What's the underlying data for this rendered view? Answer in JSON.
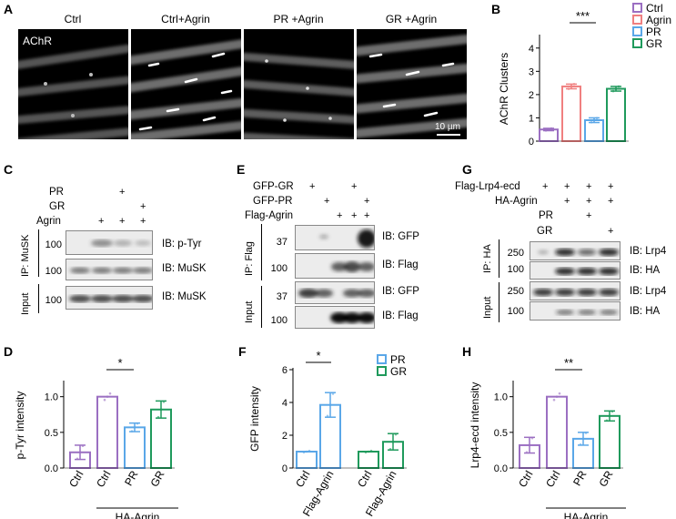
{
  "panels": {
    "A": {
      "label": "A",
      "titles": [
        "Ctrl",
        "Ctrl+Agrin",
        "PR +Agrin",
        "GR +Agrin"
      ],
      "stain": "AChR",
      "scale_bar": "10 µm"
    },
    "B": {
      "label": "B"
    },
    "C": {
      "label": "C",
      "rows": [
        "PR",
        "GR",
        "Agrin"
      ],
      "marks": {
        "pr": [
          "",
          "",
          "+",
          ""
        ],
        "gr": [
          "",
          "",
          "",
          "+"
        ],
        "agrin": [
          "",
          "+",
          "+",
          "+"
        ]
      },
      "ip_label": "IP: MuSK",
      "input_label": "Input",
      "mw": [
        "100",
        "100",
        "100"
      ],
      "ib": [
        "IB: p-Tyr",
        "IB: MuSK",
        "IB: MuSK"
      ]
    },
    "D": {
      "label": "D",
      "group_label": "HA-Agrin"
    },
    "E": {
      "label": "E",
      "rows": [
        "GFP-GR",
        "GFP-PR",
        "Flag-Agrin"
      ],
      "marks": {
        "gfpgr": [
          "+",
          "",
          "",
          "+",
          ""
        ],
        "gfppr": [
          "",
          "+",
          "",
          "",
          "+"
        ],
        "flag": [
          "",
          "",
          "+",
          "+",
          "+"
        ]
      },
      "ip_label": "IP: Flag",
      "input_label": "Input",
      "mw": [
        "37",
        "100",
        "37",
        "100"
      ],
      "ib": [
        "IB: GFP",
        "IB: Flag",
        "IB: GFP",
        "IB: Flag"
      ]
    },
    "F": {
      "label": "F",
      "star": "*"
    },
    "G": {
      "label": "G",
      "rows": [
        "Flag-Lrp4-ecd",
        "HA-Agrin",
        "PR",
        "GR"
      ],
      "marks": {
        "lrp4": [
          "+",
          "+",
          "+",
          "+"
        ],
        "ha": [
          "",
          "+",
          "+",
          "+"
        ],
        "pr": [
          "",
          "",
          "+",
          ""
        ],
        "gr": [
          "",
          "",
          "",
          "+"
        ]
      },
      "ip_label": "IP: HA",
      "input_label": "Input",
      "mw": [
        "250",
        "100",
        "250",
        "100"
      ],
      "ib": [
        "IB: Lrp4",
        "IB: HA",
        "IB: Lrp4",
        "IB: HA"
      ]
    },
    "H": {
      "label": "H",
      "group_label": "HA-Agrin"
    }
  },
  "colors": {
    "Ctrl": "#9b6fc2",
    "Agrin": "#f08080",
    "PR": "#5aa7e8",
    "GR": "#1f9a5c"
  },
  "chart_data": [
    {
      "id": "B",
      "type": "bar",
      "categories": [
        "Ctrl",
        "Agrin",
        "PR",
        "GR"
      ],
      "values": [
        0.5,
        2.35,
        0.9,
        2.25
      ],
      "errors": [
        0.05,
        0.1,
        0.1,
        0.1
      ],
      "ylabel": "AChR Clusters",
      "ylim": [
        0,
        4.5
      ],
      "yticks": [
        "0",
        "1",
        "2",
        "3",
        "4"
      ],
      "legend": [
        "Ctrl",
        "Agrin",
        "PR",
        "GR"
      ],
      "annotation": "***",
      "legend_position": "top-right"
    },
    {
      "id": "D",
      "type": "bar",
      "categories": [
        "Ctrl",
        "Ctrl",
        "PR",
        "GR"
      ],
      "values": [
        0.22,
        1.0,
        0.57,
        0.82
      ],
      "errors": [
        0.1,
        0.0,
        0.06,
        0.12
      ],
      "ylabel": "p-Tyr intensity",
      "ylim": [
        0,
        1.2
      ],
      "yticks": [
        "0.0",
        "0.5",
        "1.0"
      ],
      "annotation": "*"
    },
    {
      "id": "F",
      "type": "bar",
      "categories": [
        "Ctrl",
        "Flag-Agrin",
        "Ctrl",
        "Flag-Agrin"
      ],
      "series_colors": [
        "PR",
        "PR",
        "GR",
        "GR"
      ],
      "values": [
        1.0,
        3.85,
        1.0,
        1.6
      ],
      "errors": [
        0.0,
        0.75,
        0.0,
        0.5
      ],
      "ylabel": "GFP intensity",
      "ylim": [
        0,
        6
      ],
      "yticks": [
        "0",
        "2",
        "4",
        "6"
      ],
      "legend": [
        "PR",
        "GR"
      ],
      "annotation": "*",
      "legend_position": "top-right"
    },
    {
      "id": "H",
      "type": "bar",
      "categories": [
        "Ctrl",
        "Ctrl",
        "PR",
        "GR"
      ],
      "values": [
        0.32,
        1.0,
        0.41,
        0.73
      ],
      "errors": [
        0.11,
        0.0,
        0.09,
        0.07
      ],
      "ylabel": "Lrp4-ecd intensity",
      "ylim": [
        0,
        1.2
      ],
      "yticks": [
        "0.0",
        "0.5",
        "1.0"
      ],
      "annotation": "**"
    }
  ]
}
